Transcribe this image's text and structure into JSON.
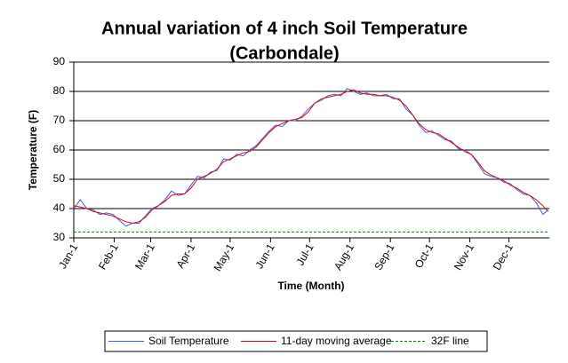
{
  "chart_data": {
    "type": "line",
    "title": [
      "Annual variation of 4 inch Soil Temperature",
      "(Carbondale)"
    ],
    "x_label": "Time (Month)",
    "y_label": "Temperature (F)",
    "x": [
      1,
      6,
      11,
      16,
      21,
      26,
      31,
      36,
      41,
      46,
      51,
      56,
      61,
      66,
      71,
      76,
      81,
      86,
      91,
      96,
      101,
      106,
      111,
      116,
      121,
      126,
      131,
      136,
      141,
      146,
      151,
      156,
      161,
      166,
      171,
      176,
      181,
      186,
      191,
      196,
      201,
      206,
      211,
      216,
      221,
      226,
      231,
      236,
      241,
      246,
      251,
      256,
      261,
      266,
      271,
      276,
      281,
      286,
      291,
      296,
      301,
      306,
      311,
      316,
      321,
      326,
      331,
      336,
      341,
      346,
      351,
      356,
      361,
      365
    ],
    "series": [
      {
        "name": "Soil Temperature",
        "color": "#3a5fcd",
        "dash": false,
        "values": [
          40,
          43,
          40,
          39.5,
          38,
          38.5,
          38,
          36,
          34,
          35,
          35,
          37.5,
          40,
          41,
          43,
          46,
          44.5,
          45,
          48,
          51,
          50.5,
          52.5,
          53,
          57,
          56.5,
          58.5,
          58,
          60,
          61.5,
          64,
          66.5,
          68.5,
          68,
          70,
          70,
          71.5,
          74,
          76,
          77,
          78.5,
          79,
          78.5,
          81,
          80,
          79,
          79.5,
          78.5,
          78.5,
          79,
          77.5,
          77.5,
          74,
          72,
          68.5,
          66,
          66.5,
          65,
          63.5,
          63,
          60.5,
          60,
          58.5,
          55.5,
          52,
          51,
          50.5,
          49,
          48.5,
          46.5,
          45,
          44.5,
          42,
          38,
          39.5
        ]
      },
      {
        "name": "11-day moving average",
        "color": "#e0001b",
        "dash": false,
        "values": [
          41,
          40.5,
          40,
          39,
          38.5,
          38,
          37.5,
          36.5,
          35.5,
          35,
          35.5,
          37,
          39.5,
          41,
          42.5,
          44.5,
          45,
          45,
          47,
          50,
          51,
          52,
          53.5,
          56,
          57,
          58,
          59,
          59.5,
          61,
          63.5,
          66,
          68,
          69,
          70,
          70.5,
          71,
          73,
          76,
          77.5,
          78,
          78.5,
          79,
          80,
          80.5,
          79.5,
          79,
          79,
          78.5,
          78.5,
          78,
          77,
          75,
          72,
          69,
          67,
          66,
          65.5,
          64,
          62.5,
          61,
          59.5,
          58.5,
          56,
          53,
          51.5,
          50.5,
          49.5,
          48,
          47,
          45.5,
          44.5,
          43,
          41,
          39
        ]
      },
      {
        "name": "32F line",
        "color": "#008000",
        "dash": true,
        "x": [
          1,
          365
        ],
        "values": [
          32,
          32
        ]
      }
    ],
    "xlim": [
      1,
      366
    ],
    "xticks": [
      {
        "value": 1,
        "label": "Jan-1"
      },
      {
        "value": 32,
        "label": "Feb-1"
      },
      {
        "value": 60,
        "label": "Mar-1"
      },
      {
        "value": 91,
        "label": "Apr-1"
      },
      {
        "value": 121,
        "label": "May-1"
      },
      {
        "value": 152,
        "label": "Jun-1"
      },
      {
        "value": 182,
        "label": "Jul-1"
      },
      {
        "value": 213,
        "label": "Aug-1"
      },
      {
        "value": 244,
        "label": "Sep-1"
      },
      {
        "value": 274,
        "label": "Oct-1"
      },
      {
        "value": 305,
        "label": "Nov-1"
      },
      {
        "value": 335,
        "label": "Dec-1"
      }
    ],
    "ylim": [
      30,
      90
    ],
    "yticks": [
      30,
      40,
      50,
      60,
      70,
      80,
      90
    ],
    "grid": true,
    "legend": "bottom"
  }
}
